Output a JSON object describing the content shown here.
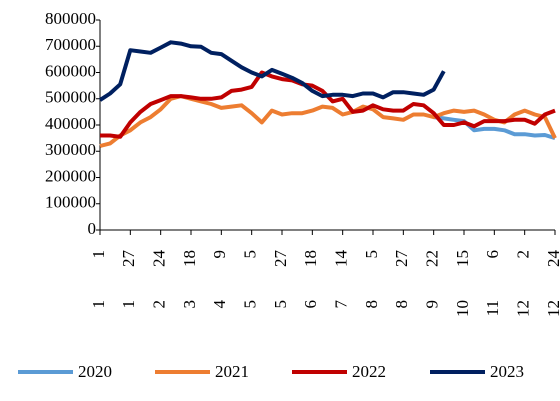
{
  "chart_data": {
    "type": "line",
    "categories": [
      "1",
      null,
      null,
      "27",
      null,
      null,
      "24",
      null,
      null,
      "18",
      null,
      null,
      "9",
      null,
      null,
      "5",
      null,
      null,
      "27",
      null,
      null,
      "18",
      null,
      null,
      "14",
      null,
      null,
      "5",
      null,
      null,
      "27",
      null,
      null,
      "22",
      null,
      null,
      "15",
      null,
      null,
      "6",
      null,
      null,
      "2",
      null,
      null,
      "24"
    ],
    "category_groups": [
      "1",
      null,
      null,
      "1",
      null,
      null,
      "2",
      null,
      null,
      "3",
      null,
      null,
      "4",
      null,
      null,
      "5",
      null,
      null,
      "5",
      null,
      null,
      "6",
      null,
      null,
      "7",
      null,
      null,
      "8",
      null,
      null,
      "8",
      null,
      null,
      "9",
      null,
      null,
      "10",
      null,
      null,
      "11",
      null,
      null,
      "12",
      null,
      null,
      "12"
    ],
    "series": [
      {
        "name": "2020",
        "color": "#5b9bd5",
        "values": [
          null,
          null,
          null,
          null,
          null,
          null,
          null,
          null,
          null,
          null,
          null,
          null,
          null,
          null,
          null,
          null,
          null,
          null,
          null,
          null,
          null,
          null,
          null,
          null,
          null,
          null,
          null,
          null,
          null,
          null,
          null,
          null,
          null,
          430000,
          425000,
          420000,
          415000,
          380000,
          385000,
          385000,
          380000,
          365000,
          365000,
          360000,
          362000,
          350000
        ]
      },
      {
        "name": "2021",
        "color": "#ed7d31",
        "values": [
          320000,
          330000,
          360000,
          380000,
          410000,
          430000,
          460000,
          500000,
          510000,
          500000,
          490000,
          480000,
          465000,
          470000,
          475000,
          445000,
          410000,
          455000,
          440000,
          445000,
          445000,
          455000,
          470000,
          465000,
          440000,
          450000,
          470000,
          460000,
          430000,
          425000,
          420000,
          440000,
          440000,
          430000,
          445000,
          455000,
          450000,
          455000,
          440000,
          420000,
          410000,
          440000,
          455000,
          440000,
          430000,
          350000
        ]
      },
      {
        "name": "2022",
        "color": "#c00000",
        "values": [
          360000,
          360000,
          355000,
          410000,
          450000,
          480000,
          495000,
          510000,
          510000,
          505000,
          500000,
          500000,
          505000,
          530000,
          535000,
          545000,
          600000,
          585000,
          575000,
          570000,
          555000,
          550000,
          530000,
          490000,
          500000,
          450000,
          455000,
          475000,
          460000,
          455000,
          455000,
          480000,
          475000,
          445000,
          400000,
          400000,
          410000,
          395000,
          415000,
          415000,
          415000,
          420000,
          420000,
          405000,
          440000,
          455000
        ]
      },
      {
        "name": "2023",
        "color": "#002060",
        "values": [
          495000,
          520000,
          555000,
          685000,
          680000,
          675000,
          695000,
          715000,
          710000,
          700000,
          698000,
          675000,
          670000,
          645000,
          620000,
          600000,
          585000,
          610000,
          595000,
          580000,
          560000,
          530000,
          510000,
          515000,
          515000,
          510000,
          520000,
          520000,
          505000,
          525000,
          525000,
          520000,
          515000,
          535000,
          605000,
          null,
          null,
          null,
          null,
          null,
          null,
          null,
          null,
          null,
          null,
          null
        ]
      }
    ],
    "ylim": [
      0,
      800000
    ],
    "yticks": [
      0,
      100000,
      200000,
      300000,
      400000,
      500000,
      600000,
      700000,
      800000
    ],
    "legend": "bottom"
  }
}
